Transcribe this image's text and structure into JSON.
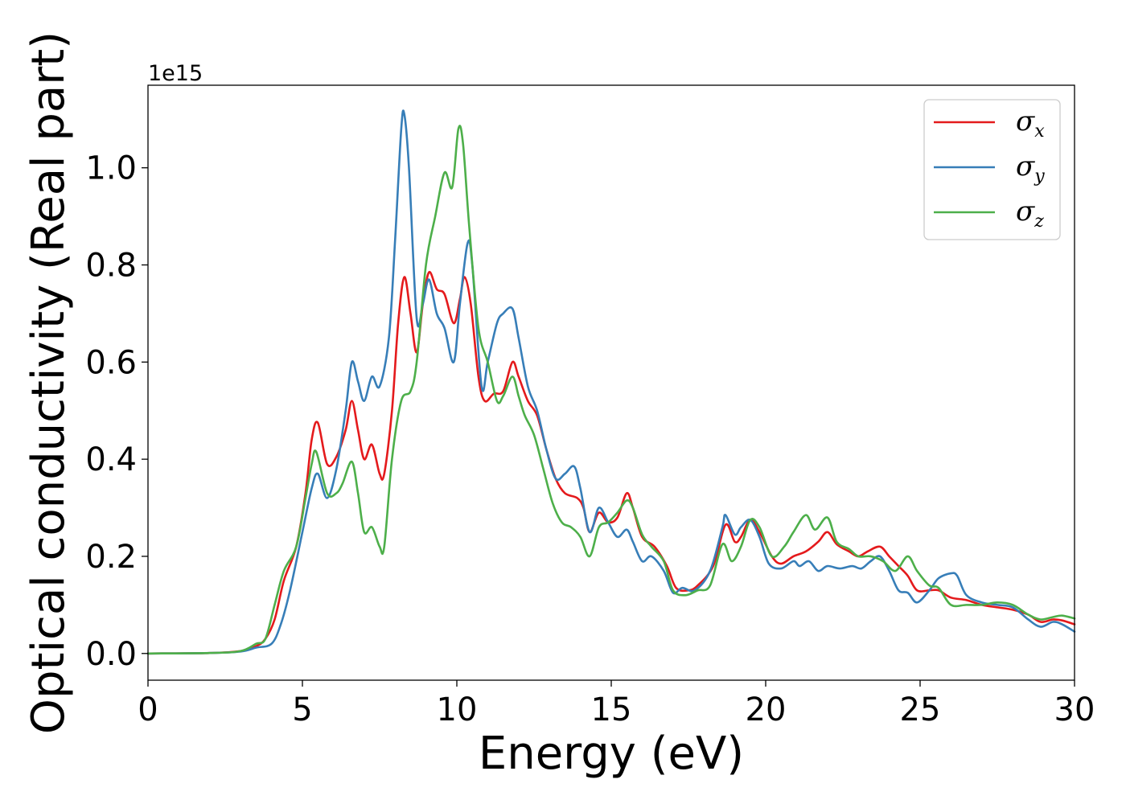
{
  "chart_data": {
    "type": "line",
    "title": "",
    "xlabel": "Energy (eV)",
    "ylabel": "Optical conductivity (Real part)",
    "y_offset_label": "1e15",
    "xlim": [
      0,
      30
    ],
    "ylim": [
      -0.055,
      1.17
    ],
    "x_ticks": [
      0,
      5,
      10,
      15,
      20,
      25,
      30
    ],
    "y_ticks": [
      0.0,
      0.2,
      0.4,
      0.6,
      0.8,
      1.0
    ],
    "x_tick_labels": [
      "0",
      "5",
      "10",
      "15",
      "20",
      "25",
      "30"
    ],
    "y_tick_labels": [
      "0.0",
      "0.2",
      "0.4",
      "0.6",
      "0.8",
      "1.0"
    ],
    "grid": false,
    "legend_position": "top-right",
    "series": [
      {
        "name": "σx",
        "symbol": "σ",
        "subscript": "x",
        "color": "#e41a1c",
        "points": [
          [
            0,
            0
          ],
          [
            2,
            0.001
          ],
          [
            3,
            0.005
          ],
          [
            3.5,
            0.015
          ],
          [
            3.8,
            0.03
          ],
          [
            4.1,
            0.07
          ],
          [
            4.4,
            0.15
          ],
          [
            4.8,
            0.22
          ],
          [
            5.1,
            0.33
          ],
          [
            5.3,
            0.44
          ],
          [
            5.5,
            0.475
          ],
          [
            5.8,
            0.39
          ],
          [
            6.1,
            0.405
          ],
          [
            6.4,
            0.46
          ],
          [
            6.6,
            0.52
          ],
          [
            6.8,
            0.46
          ],
          [
            7.0,
            0.4
          ],
          [
            7.25,
            0.43
          ],
          [
            7.5,
            0.37
          ],
          [
            7.65,
            0.37
          ],
          [
            7.9,
            0.5
          ],
          [
            8.1,
            0.68
          ],
          [
            8.3,
            0.775
          ],
          [
            8.5,
            0.7
          ],
          [
            8.7,
            0.62
          ],
          [
            8.9,
            0.72
          ],
          [
            9.1,
            0.785
          ],
          [
            9.35,
            0.75
          ],
          [
            9.6,
            0.74
          ],
          [
            9.9,
            0.68
          ],
          [
            10.1,
            0.73
          ],
          [
            10.25,
            0.775
          ],
          [
            10.45,
            0.72
          ],
          [
            10.7,
            0.57
          ],
          [
            10.9,
            0.52
          ],
          [
            11.2,
            0.535
          ],
          [
            11.5,
            0.54
          ],
          [
            11.8,
            0.6
          ],
          [
            12.0,
            0.57
          ],
          [
            12.3,
            0.52
          ],
          [
            12.6,
            0.49
          ],
          [
            12.9,
            0.42
          ],
          [
            13.2,
            0.36
          ],
          [
            13.5,
            0.33
          ],
          [
            13.9,
            0.32
          ],
          [
            14.1,
            0.3
          ],
          [
            14.3,
            0.25
          ],
          [
            14.6,
            0.29
          ],
          [
            14.9,
            0.27
          ],
          [
            15.2,
            0.28
          ],
          [
            15.5,
            0.33
          ],
          [
            15.7,
            0.3
          ],
          [
            16.0,
            0.24
          ],
          [
            16.4,
            0.22
          ],
          [
            16.8,
            0.18
          ],
          [
            17.1,
            0.135
          ],
          [
            17.5,
            0.13
          ],
          [
            17.8,
            0.14
          ],
          [
            18.3,
            0.18
          ],
          [
            18.7,
            0.265
          ],
          [
            19.0,
            0.23
          ],
          [
            19.2,
            0.24
          ],
          [
            19.5,
            0.275
          ],
          [
            19.8,
            0.25
          ],
          [
            20.2,
            0.2
          ],
          [
            20.5,
            0.185
          ],
          [
            20.9,
            0.2
          ],
          [
            21.3,
            0.21
          ],
          [
            21.7,
            0.23
          ],
          [
            22.0,
            0.25
          ],
          [
            22.3,
            0.225
          ],
          [
            22.7,
            0.21
          ],
          [
            23.0,
            0.2
          ],
          [
            23.3,
            0.21
          ],
          [
            23.7,
            0.22
          ],
          [
            24.0,
            0.2
          ],
          [
            24.3,
            0.18
          ],
          [
            24.6,
            0.16
          ],
          [
            24.9,
            0.13
          ],
          [
            25.3,
            0.13
          ],
          [
            25.6,
            0.13
          ],
          [
            26.0,
            0.115
          ],
          [
            26.5,
            0.11
          ],
          [
            27.0,
            0.1
          ],
          [
            27.5,
            0.095
          ],
          [
            28.0,
            0.09
          ],
          [
            28.5,
            0.08
          ],
          [
            28.9,
            0.065
          ],
          [
            29.3,
            0.07
          ],
          [
            29.6,
            0.068
          ],
          [
            30.0,
            0.06
          ]
        ]
      },
      {
        "name": "σy",
        "symbol": "σ",
        "subscript": "y",
        "color": "#377eb8",
        "points": [
          [
            0,
            0
          ],
          [
            2,
            0.001
          ],
          [
            3,
            0.004
          ],
          [
            3.5,
            0.012
          ],
          [
            4.0,
            0.02
          ],
          [
            4.3,
            0.06
          ],
          [
            4.6,
            0.13
          ],
          [
            5.0,
            0.25
          ],
          [
            5.3,
            0.34
          ],
          [
            5.5,
            0.37
          ],
          [
            5.8,
            0.32
          ],
          [
            6.1,
            0.38
          ],
          [
            6.4,
            0.5
          ],
          [
            6.6,
            0.6
          ],
          [
            6.8,
            0.56
          ],
          [
            7.0,
            0.52
          ],
          [
            7.25,
            0.57
          ],
          [
            7.5,
            0.55
          ],
          [
            7.8,
            0.65
          ],
          [
            8.0,
            0.85
          ],
          [
            8.2,
            1.08
          ],
          [
            8.3,
            1.11
          ],
          [
            8.45,
            1.0
          ],
          [
            8.7,
            0.69
          ],
          [
            8.9,
            0.72
          ],
          [
            9.1,
            0.77
          ],
          [
            9.35,
            0.7
          ],
          [
            9.6,
            0.67
          ],
          [
            9.9,
            0.6
          ],
          [
            10.1,
            0.72
          ],
          [
            10.35,
            0.845
          ],
          [
            10.5,
            0.8
          ],
          [
            10.8,
            0.55
          ],
          [
            11.0,
            0.6
          ],
          [
            11.3,
            0.68
          ],
          [
            11.5,
            0.7
          ],
          [
            11.8,
            0.71
          ],
          [
            12.0,
            0.65
          ],
          [
            12.3,
            0.55
          ],
          [
            12.6,
            0.5
          ],
          [
            12.9,
            0.42
          ],
          [
            13.2,
            0.36
          ],
          [
            13.5,
            0.37
          ],
          [
            13.8,
            0.385
          ],
          [
            14.0,
            0.34
          ],
          [
            14.3,
            0.25
          ],
          [
            14.6,
            0.3
          ],
          [
            14.9,
            0.27
          ],
          [
            15.2,
            0.24
          ],
          [
            15.5,
            0.255
          ],
          [
            15.7,
            0.23
          ],
          [
            16.0,
            0.19
          ],
          [
            16.3,
            0.2
          ],
          [
            16.7,
            0.17
          ],
          [
            17.0,
            0.125
          ],
          [
            17.3,
            0.135
          ],
          [
            17.7,
            0.13
          ],
          [
            18.2,
            0.17
          ],
          [
            18.6,
            0.26
          ],
          [
            18.7,
            0.285
          ],
          [
            19.0,
            0.245
          ],
          [
            19.2,
            0.26
          ],
          [
            19.5,
            0.275
          ],
          [
            19.8,
            0.24
          ],
          [
            20.1,
            0.185
          ],
          [
            20.5,
            0.175
          ],
          [
            20.9,
            0.19
          ],
          [
            21.1,
            0.18
          ],
          [
            21.4,
            0.19
          ],
          [
            21.7,
            0.17
          ],
          [
            22.0,
            0.18
          ],
          [
            22.4,
            0.175
          ],
          [
            22.8,
            0.18
          ],
          [
            23.1,
            0.175
          ],
          [
            23.4,
            0.19
          ],
          [
            23.7,
            0.2
          ],
          [
            24.0,
            0.17
          ],
          [
            24.3,
            0.13
          ],
          [
            24.6,
            0.125
          ],
          [
            24.9,
            0.105
          ],
          [
            25.3,
            0.13
          ],
          [
            25.6,
            0.155
          ],
          [
            26.0,
            0.165
          ],
          [
            26.2,
            0.16
          ],
          [
            26.5,
            0.12
          ],
          [
            27.0,
            0.105
          ],
          [
            27.5,
            0.1
          ],
          [
            28.0,
            0.095
          ],
          [
            28.5,
            0.07
          ],
          [
            28.9,
            0.055
          ],
          [
            29.3,
            0.065
          ],
          [
            29.6,
            0.06
          ],
          [
            30.0,
            0.045
          ]
        ]
      },
      {
        "name": "σz",
        "symbol": "σ",
        "subscript": "z",
        "color": "#4daf4a",
        "points": [
          [
            0,
            0
          ],
          [
            2,
            0.001
          ],
          [
            3,
            0.005
          ],
          [
            3.5,
            0.02
          ],
          [
            3.8,
            0.03
          ],
          [
            4.1,
            0.1
          ],
          [
            4.4,
            0.17
          ],
          [
            4.8,
            0.22
          ],
          [
            5.1,
            0.32
          ],
          [
            5.3,
            0.39
          ],
          [
            5.45,
            0.415
          ],
          [
            5.8,
            0.33
          ],
          [
            6.1,
            0.33
          ],
          [
            6.3,
            0.35
          ],
          [
            6.6,
            0.395
          ],
          [
            6.8,
            0.33
          ],
          [
            7.0,
            0.25
          ],
          [
            7.25,
            0.26
          ],
          [
            7.5,
            0.22
          ],
          [
            7.65,
            0.22
          ],
          [
            7.9,
            0.4
          ],
          [
            8.2,
            0.52
          ],
          [
            8.5,
            0.54
          ],
          [
            8.7,
            0.6
          ],
          [
            9.0,
            0.8
          ],
          [
            9.3,
            0.9
          ],
          [
            9.6,
            0.99
          ],
          [
            9.85,
            0.96
          ],
          [
            10.05,
            1.08
          ],
          [
            10.2,
            1.05
          ],
          [
            10.4,
            0.88
          ],
          [
            10.7,
            0.67
          ],
          [
            11.0,
            0.6
          ],
          [
            11.3,
            0.52
          ],
          [
            11.5,
            0.53
          ],
          [
            11.8,
            0.57
          ],
          [
            12.0,
            0.53
          ],
          [
            12.2,
            0.49
          ],
          [
            12.5,
            0.45
          ],
          [
            12.8,
            0.38
          ],
          [
            13.1,
            0.31
          ],
          [
            13.4,
            0.27
          ],
          [
            13.7,
            0.26
          ],
          [
            14.0,
            0.24
          ],
          [
            14.3,
            0.2
          ],
          [
            14.6,
            0.26
          ],
          [
            14.9,
            0.27
          ],
          [
            15.2,
            0.29
          ],
          [
            15.5,
            0.315
          ],
          [
            15.7,
            0.3
          ],
          [
            16.0,
            0.245
          ],
          [
            16.3,
            0.22
          ],
          [
            16.7,
            0.19
          ],
          [
            17.0,
            0.13
          ],
          [
            17.4,
            0.12
          ],
          [
            17.8,
            0.13
          ],
          [
            18.2,
            0.14
          ],
          [
            18.6,
            0.225
          ],
          [
            18.9,
            0.19
          ],
          [
            19.2,
            0.22
          ],
          [
            19.5,
            0.275
          ],
          [
            19.8,
            0.26
          ],
          [
            20.2,
            0.2
          ],
          [
            20.6,
            0.22
          ],
          [
            20.9,
            0.25
          ],
          [
            21.3,
            0.285
          ],
          [
            21.6,
            0.255
          ],
          [
            22.0,
            0.28
          ],
          [
            22.3,
            0.23
          ],
          [
            22.7,
            0.215
          ],
          [
            23.0,
            0.2
          ],
          [
            23.4,
            0.2
          ],
          [
            23.8,
            0.19
          ],
          [
            24.2,
            0.17
          ],
          [
            24.6,
            0.2
          ],
          [
            24.9,
            0.17
          ],
          [
            25.3,
            0.14
          ],
          [
            25.6,
            0.135
          ],
          [
            26.0,
            0.1
          ],
          [
            26.5,
            0.1
          ],
          [
            27.0,
            0.1
          ],
          [
            27.5,
            0.105
          ],
          [
            28.0,
            0.1
          ],
          [
            28.5,
            0.08
          ],
          [
            28.9,
            0.07
          ],
          [
            29.3,
            0.075
          ],
          [
            29.6,
            0.078
          ],
          [
            30.0,
            0.072
          ]
        ]
      }
    ]
  }
}
